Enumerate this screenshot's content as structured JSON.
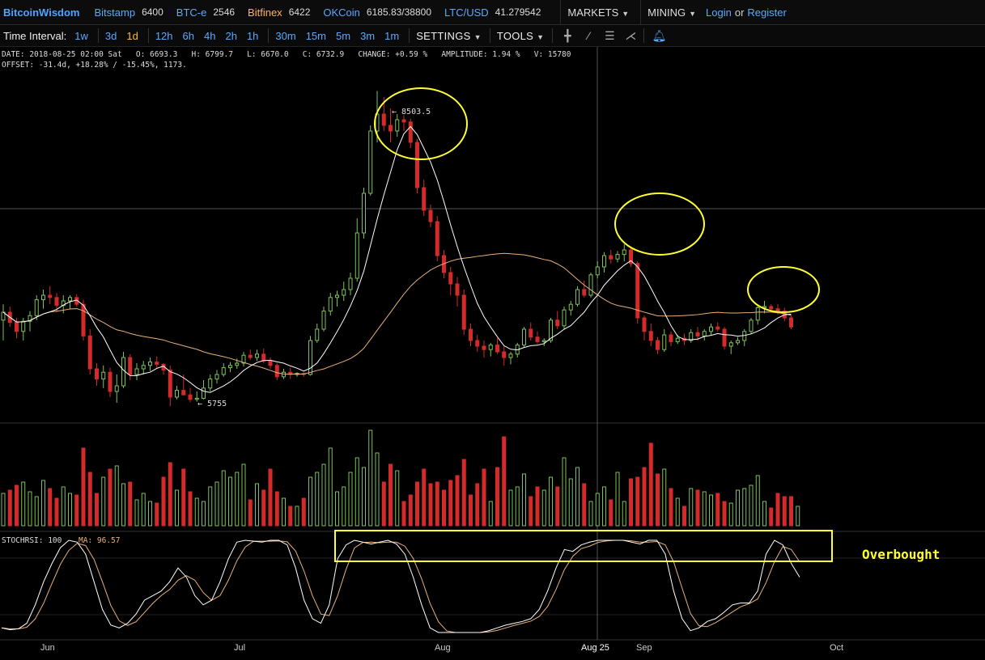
{
  "topbar": {
    "brand": "BitcoinWisdom",
    "exchanges": [
      {
        "name": "Bitstamp",
        "price": "6400"
      },
      {
        "name": "BTC-e",
        "price": "2546"
      },
      {
        "name": "Bitfinex",
        "price": "6422"
      },
      {
        "name": "OKCoin",
        "price": "6185.83/38800"
      },
      {
        "name": "LTC/USD",
        "price": "41.279542"
      }
    ],
    "markets": "MARKETS",
    "mining": "MINING",
    "login": "Login",
    "or": "or",
    "register": "Register"
  },
  "toolbar": {
    "label": "Time Interval:",
    "intervals": [
      "1w",
      "3d",
      "1d",
      "12h",
      "6h",
      "4h",
      "2h",
      "1h",
      "30m",
      "15m",
      "5m",
      "3m",
      "1m"
    ],
    "active_interval": "1d",
    "settings": "SETTINGS",
    "tools": "TOOLS"
  },
  "info": {
    "line1": "DATE: 2018-08-25 02:00 Sat   O: 6693.3   H: 6799.7   L: 6670.0   C: 6732.9   CHANGE: +0.59 %   AMPLITUDE: 1.94 %   V: 15780",
    "line2": "OFFSET: -31.4d, +18.28% / -15.45%, 1173."
  },
  "chart_data": {
    "type": "candlestick",
    "high_marker": "← 8503.5",
    "low_marker": "← 5755",
    "x_labels": [
      "Jun",
      "Jul",
      "Aug",
      "Aug 25",
      "Sep",
      "Oct"
    ],
    "stochrsi_label": "STOCHRSI: 100",
    "ma_label": "MA: 96.57",
    "annotation": "Overbought",
    "colors": {
      "up": "#7ec25a",
      "down": "#d42a2a",
      "ma_short": "#ffffff",
      "ma_long": "#e8b07a",
      "annotation": "#ffff33"
    },
    "candles": [
      [
        6480,
        6620,
        6300,
        6550
      ],
      [
        6550,
        6600,
        6420,
        6460
      ],
      [
        6460,
        6500,
        6320,
        6380
      ],
      [
        6380,
        6500,
        6300,
        6470
      ],
      [
        6470,
        6560,
        6380,
        6520
      ],
      [
        6520,
        6700,
        6480,
        6660
      ],
      [
        6660,
        6750,
        6580,
        6700
      ],
      [
        6700,
        6780,
        6620,
        6680
      ],
      [
        6680,
        6720,
        6550,
        6610
      ],
      [
        6610,
        6700,
        6540,
        6650
      ],
      [
        6650,
        6700,
        6580,
        6680
      ],
      [
        6680,
        6710,
        6600,
        6620
      ],
      [
        6620,
        6660,
        6300,
        6340
      ],
      [
        6340,
        6400,
        6000,
        6050
      ],
      [
        6050,
        6100,
        5900,
        5960
      ],
      [
        5960,
        6080,
        5880,
        6020
      ],
      [
        6020,
        6060,
        5800,
        5850
      ],
      [
        5850,
        6000,
        5750,
        5900
      ],
      [
        5900,
        6200,
        5880,
        6150
      ],
      [
        6150,
        6180,
        5950,
        6000
      ],
      [
        6000,
        6100,
        5950,
        6050
      ],
      [
        6050,
        6120,
        6000,
        6080
      ],
      [
        6080,
        6150,
        6030,
        6110
      ],
      [
        6110,
        6160,
        6050,
        6090
      ],
      [
        6090,
        6100,
        6000,
        6040
      ],
      [
        6040,
        6080,
        5720,
        5800
      ],
      [
        5800,
        5900,
        5780,
        5860
      ],
      [
        5860,
        6000,
        5820,
        5820
      ],
      [
        5820,
        5880,
        5755,
        5780
      ],
      [
        5780,
        5850,
        5760,
        5790
      ],
      [
        5790,
        5950,
        5780,
        5880
      ],
      [
        5880,
        6000,
        5850,
        5960
      ],
      [
        5960,
        6040,
        5920,
        6000
      ],
      [
        6000,
        6100,
        5980,
        6060
      ],
      [
        6060,
        6110,
        6020,
        6080
      ],
      [
        6080,
        6140,
        6050,
        6100
      ],
      [
        6100,
        6200,
        6070,
        6170
      ],
      [
        6170,
        6220,
        6130,
        6150
      ],
      [
        6150,
        6220,
        6120,
        6180
      ],
      [
        6180,
        6230,
        6100,
        6120
      ],
      [
        6120,
        6150,
        6050,
        6080
      ],
      [
        6080,
        6100,
        5950,
        5980
      ],
      [
        5980,
        6050,
        5960,
        6020
      ],
      [
        6020,
        6060,
        5960,
        6000
      ],
      [
        6000,
        6020,
        5980,
        6010
      ],
      [
        6010,
        6020,
        5980,
        6000
      ],
      [
        6000,
        6340,
        5990,
        6300
      ],
      [
        6300,
        6450,
        6280,
        6400
      ],
      [
        6400,
        6600,
        6380,
        6560
      ],
      [
        6560,
        6720,
        6520,
        6680
      ],
      [
        6680,
        6740,
        6600,
        6700
      ],
      [
        6700,
        6820,
        6650,
        6750
      ],
      [
        6750,
        6900,
        6700,
        6850
      ],
      [
        6850,
        7380,
        6820,
        7250
      ],
      [
        7250,
        7650,
        7200,
        7600
      ],
      [
        7600,
        8200,
        7580,
        8150
      ],
      [
        8150,
        8503.5,
        8050,
        8300
      ],
      [
        8300,
        8450,
        8150,
        8200
      ],
      [
        8200,
        8350,
        8050,
        8150
      ],
      [
        8150,
        8300,
        8100,
        8250
      ],
      [
        8250,
        8290,
        8150,
        8230
      ],
      [
        8230,
        8260,
        8000,
        8050
      ],
      [
        8050,
        8080,
        7600,
        7650
      ],
      [
        7650,
        7720,
        7400,
        7450
      ],
      [
        7450,
        7500,
        7300,
        7350
      ],
      [
        7350,
        7400,
        7000,
        7050
      ],
      [
        7050,
        7100,
        6850,
        6900
      ],
      [
        6900,
        6950,
        6700,
        6800
      ],
      [
        6800,
        6860,
        6600,
        6700
      ],
      [
        6700,
        6750,
        6350,
        6400
      ],
      [
        6400,
        6450,
        6250,
        6300
      ],
      [
        6300,
        6350,
        6200,
        6250
      ],
      [
        6250,
        6300,
        6150,
        6220
      ],
      [
        6220,
        6280,
        6160,
        6260
      ],
      [
        6260,
        6320,
        6180,
        6200
      ],
      [
        6200,
        6250,
        6080,
        6150
      ],
      [
        6150,
        6200,
        6090,
        6180
      ],
      [
        6180,
        6280,
        6150,
        6260
      ],
      [
        6260,
        6420,
        6240,
        6400
      ],
      [
        6400,
        6460,
        6300,
        6330
      ],
      [
        6330,
        6380,
        6270,
        6290
      ],
      [
        6290,
        6320,
        6250,
        6300
      ],
      [
        6300,
        6500,
        6280,
        6480
      ],
      [
        6480,
        6560,
        6400,
        6430
      ],
      [
        6430,
        6600,
        6400,
        6570
      ],
      [
        6570,
        6650,
        6520,
        6620
      ],
      [
        6620,
        6780,
        6600,
        6750
      ],
      [
        6750,
        6830,
        6680,
        6700
      ],
      [
        6700,
        6900,
        6680,
        6880
      ],
      [
        6880,
        7000,
        6850,
        6950
      ],
      [
        6950,
        7080,
        6900,
        7050
      ],
      [
        7050,
        7100,
        6980,
        7020
      ],
      [
        7020,
        7090,
        6990,
        7060
      ],
      [
        7060,
        7150,
        7000,
        7100
      ],
      [
        7100,
        7130,
        6950,
        6980
      ],
      [
        6980,
        7000,
        6450,
        6500
      ],
      [
        6500,
        6520,
        6300,
        6380
      ],
      [
        6380,
        6450,
        6250,
        6300
      ],
      [
        6300,
        6330,
        6180,
        6220
      ],
      [
        6220,
        6400,
        6200,
        6350
      ],
      [
        6350,
        6380,
        6250,
        6290
      ],
      [
        6290,
        6350,
        6270,
        6320
      ],
      [
        6320,
        6360,
        6260,
        6300
      ],
      [
        6300,
        6400,
        6280,
        6370
      ],
      [
        6370,
        6420,
        6300,
        6340
      ],
      [
        6340,
        6400,
        6300,
        6380
      ],
      [
        6380,
        6450,
        6350,
        6420
      ],
      [
        6420,
        6460,
        6380,
        6400
      ],
      [
        6400,
        6420,
        6220,
        6250
      ],
      [
        6250,
        6300,
        6180,
        6280
      ],
      [
        6280,
        6330,
        6260,
        6300
      ],
      [
        6300,
        6400,
        6250,
        6380
      ],
      [
        6380,
        6500,
        6360,
        6480
      ],
      [
        6480,
        6620,
        6440,
        6590
      ],
      [
        6590,
        6650,
        6540,
        6600
      ],
      [
        6600,
        6620,
        6560,
        6580
      ],
      [
        6580,
        6620,
        6530,
        6560
      ],
      [
        6560,
        6590,
        6470,
        6500
      ],
      [
        6500,
        6520,
        6400,
        6420
      ]
    ],
    "volumes": [
      20,
      22,
      25,
      27,
      21,
      18,
      28,
      23,
      17,
      24,
      20,
      19,
      48,
      33,
      20,
      30,
      35,
      37,
      26,
      27,
      16,
      20,
      15,
      14,
      30,
      39,
      22,
      35,
      21,
      17,
      15,
      24,
      27,
      34,
      30,
      33,
      38,
      16,
      26,
      22,
      35,
      21,
      17,
      12,
      12,
      17,
      30,
      33,
      38,
      48,
      21,
      24,
      33,
      42,
      36,
      59,
      45,
      27,
      38,
      34,
      15,
      19,
      27,
      35,
      26,
      27,
      22,
      28,
      31,
      41,
      19,
      26,
      35,
      15,
      36,
      55,
      22,
      24,
      32,
      18,
      24,
      22,
      30,
      24,
      42,
      29,
      36,
      26,
      15,
      20,
      24,
      16,
      33,
      15,
      29,
      30,
      36,
      51,
      32,
      35,
      23,
      17,
      12,
      23,
      22,
      21,
      19,
      20,
      15,
      14,
      22,
      23,
      25,
      31,
      15,
      11,
      20,
      18,
      18,
      12
    ],
    "stochrsi": [
      0.05,
      0.03,
      0.04,
      0.1,
      0.3,
      0.55,
      0.75,
      0.92,
      1.0,
      0.98,
      0.85,
      0.55,
      0.25,
      0.08,
      0.05,
      0.1,
      0.2,
      0.35,
      0.4,
      0.45,
      0.55,
      0.7,
      0.6,
      0.4,
      0.3,
      0.35,
      0.55,
      0.8,
      0.98,
      1.0,
      0.99,
      0.98,
      1.0,
      1.0,
      0.95,
      0.7,
      0.35,
      0.15,
      0.1,
      0.3,
      0.8,
      0.95,
      1.0,
      0.98,
      0.96,
      0.98,
      1.0,
      0.96,
      0.85,
      0.6,
      0.3,
      0.05,
      0.0,
      0.0,
      0.0,
      0.0,
      0.0,
      0.0,
      0.02,
      0.05,
      0.08,
      0.1,
      0.12,
      0.15,
      0.25,
      0.45,
      0.7,
      0.9,
      0.88,
      0.95,
      0.98,
      1.0,
      1.0,
      1.0,
      1.0,
      0.98,
      0.96,
      1.0,
      1.0,
      0.85,
      0.45,
      0.15,
      0.02,
      0.05,
      0.12,
      0.15,
      0.22,
      0.3,
      0.32,
      0.32,
      0.45,
      0.85,
      1.0,
      0.95,
      0.75,
      0.6
    ]
  }
}
